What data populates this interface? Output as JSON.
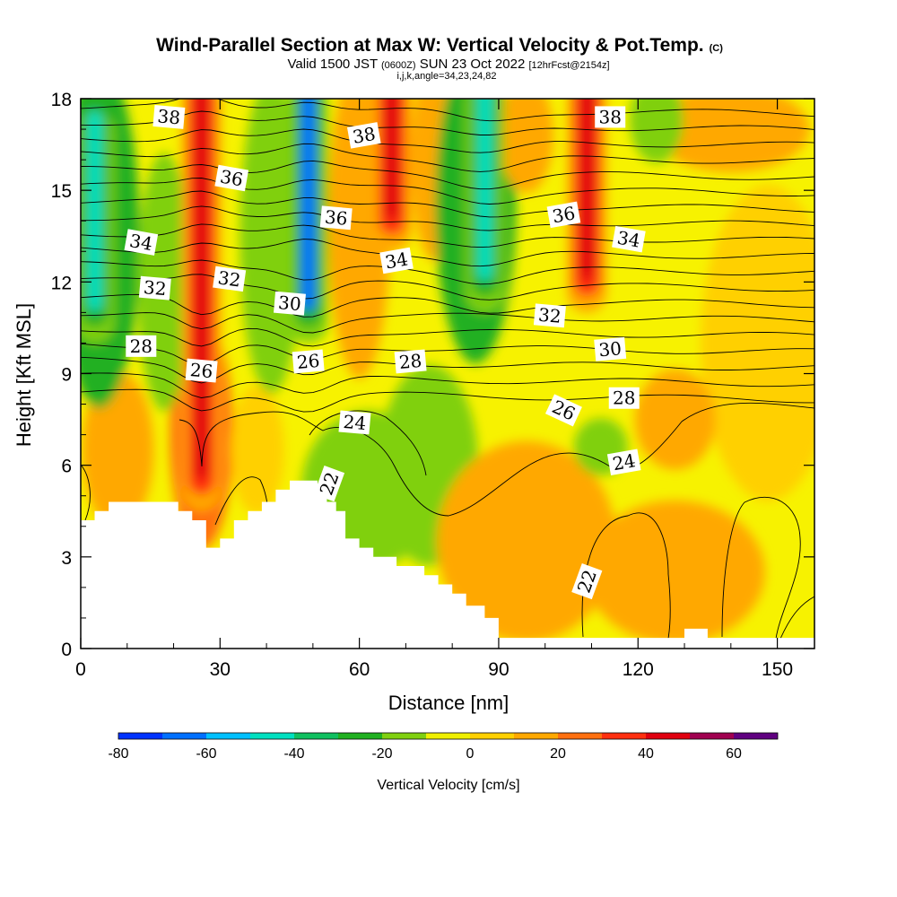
{
  "header": {
    "title": "Wind-Parallel Section at Max W: Vertical Velocity & Pot.Temp.",
    "copyright": "(C)",
    "valid_prefix": "Valid 1500 JST",
    "valid_utc": "(0600Z)",
    "valid_date": "SUN 23 Oct 2022",
    "forecast": "[12hrFcst@2154z]",
    "params": "i,j,k,angle=34,23,24,82"
  },
  "colors": {
    "terrain": "#ffffff",
    "contour": "#000000",
    "frame": "#000000"
  },
  "chart_data": {
    "type": "heatmap",
    "title": "Wind-Parallel Section at Max W: Vertical Velocity & Pot.Temp.",
    "xlabel": "Distance [nm]",
    "ylabel": "Height [Kft MSL]",
    "xlim": [
      0,
      158
    ],
    "ylim": [
      0,
      18
    ],
    "xticks": [
      0,
      30,
      60,
      90,
      120,
      150
    ],
    "yticks": [
      0,
      3,
      6,
      9,
      12,
      15,
      18
    ],
    "colorbar": {
      "label": "Vertical Velocity [cm/s]",
      "levels": [
        -80,
        -70,
        -60,
        -50,
        -40,
        -30,
        -20,
        -10,
        0,
        10,
        20,
        30,
        40,
        50,
        60,
        70
      ],
      "colors": [
        "#0033ff",
        "#0070ff",
        "#00c0ff",
        "#00e0c0",
        "#10c060",
        "#20b020",
        "#80d010",
        "#f0f000",
        "#ffd000",
        "#ffa800",
        "#ff7010",
        "#ff3010",
        "#e00010",
        "#a00050",
        "#600080"
      ],
      "ticks": [
        -80,
        -60,
        -40,
        -20,
        0,
        20,
        40,
        60
      ]
    },
    "shading": "vertical velocity (cm/s), filled contours",
    "contours": {
      "field": "potential temperature",
      "labels": [
        {
          "value": 38,
          "x": 19,
          "y": 17.4
        },
        {
          "value": 38,
          "x": 61,
          "y": 16.8
        },
        {
          "value": 38,
          "x": 114,
          "y": 17.4
        },
        {
          "value": 36,
          "x": 32.5,
          "y": 15.4
        },
        {
          "value": 36,
          "x": 55,
          "y": 14.1
        },
        {
          "value": 36,
          "x": 104,
          "y": 14.2
        },
        {
          "value": 34,
          "x": 13,
          "y": 13.3
        },
        {
          "value": 34,
          "x": 68,
          "y": 12.7
        },
        {
          "value": 34,
          "x": 118,
          "y": 13.4
        },
        {
          "value": 32,
          "x": 16,
          "y": 11.8
        },
        {
          "value": 32,
          "x": 32,
          "y": 12.1
        },
        {
          "value": 32,
          "x": 101,
          "y": 10.9
        },
        {
          "value": 30,
          "x": 45,
          "y": 11.3
        },
        {
          "value": 30,
          "x": 114,
          "y": 9.8
        },
        {
          "value": 28,
          "x": 13,
          "y": 9.9
        },
        {
          "value": 28,
          "x": 71,
          "y": 9.4
        },
        {
          "value": 28,
          "x": 117,
          "y": 8.2
        },
        {
          "value": 26,
          "x": 26,
          "y": 9.1
        },
        {
          "value": 26,
          "x": 49,
          "y": 9.4
        },
        {
          "value": 26,
          "x": 104,
          "y": 7.8
        },
        {
          "value": 24,
          "x": 59,
          "y": 7.4
        },
        {
          "value": 24,
          "x": 117,
          "y": 6.1
        },
        {
          "value": 22,
          "x": 53.5,
          "y": 5.4
        },
        {
          "value": 22,
          "x": 109,
          "y": 2.2
        }
      ]
    },
    "velocity_features": [
      {
        "x": 3,
        "y_from": 10,
        "y_to": 17,
        "w": -45
      },
      {
        "x": 26,
        "y_from": 4.5,
        "y_to": 18,
        "w": 40
      },
      {
        "x": 49,
        "y_from": 10,
        "y_to": 18,
        "w": -70
      },
      {
        "x": 67,
        "y_from": 13,
        "y_to": 18,
        "w": 45
      },
      {
        "x": 87,
        "y_from": 11,
        "y_to": 18,
        "w": -45
      },
      {
        "x": 109,
        "y_from": 11,
        "y_to": 18,
        "w": 40
      }
    ],
    "terrain_top_kft": [
      [
        0,
        4.2
      ],
      [
        3,
        4.2
      ],
      [
        3,
        4.5
      ],
      [
        6,
        4.5
      ],
      [
        6,
        4.8
      ],
      [
        21,
        4.8
      ],
      [
        21,
        4.5
      ],
      [
        24,
        4.5
      ],
      [
        24,
        4.2
      ],
      [
        27,
        4.2
      ],
      [
        27,
        3.3
      ],
      [
        30,
        3.3
      ],
      [
        30,
        3.6
      ],
      [
        33,
        3.6
      ],
      [
        33,
        4.2
      ],
      [
        36,
        4.2
      ],
      [
        36,
        4.5
      ],
      [
        39,
        4.5
      ],
      [
        39,
        4.8
      ],
      [
        42,
        4.8
      ],
      [
        42,
        5.2
      ],
      [
        45,
        5.2
      ],
      [
        45,
        5.5
      ],
      [
        51,
        5.5
      ],
      [
        51,
        5.2
      ],
      [
        53,
        5.2
      ],
      [
        53,
        4.8
      ],
      [
        55,
        4.8
      ],
      [
        55,
        4.5
      ],
      [
        57,
        4.5
      ],
      [
        57,
        3.6
      ],
      [
        60,
        3.6
      ],
      [
        60,
        3.3
      ],
      [
        63,
        3.3
      ],
      [
        63,
        3.0
      ],
      [
        68,
        3.0
      ],
      [
        68,
        2.7
      ],
      [
        74,
        2.7
      ],
      [
        74,
        2.4
      ],
      [
        77,
        2.4
      ],
      [
        77,
        2.1
      ],
      [
        80,
        2.1
      ],
      [
        80,
        1.8
      ],
      [
        83,
        1.8
      ],
      [
        83,
        1.4
      ],
      [
        87,
        1.4
      ],
      [
        87,
        1.0
      ],
      [
        90,
        1.0
      ],
      [
        90,
        0.35
      ],
      [
        130,
        0.35
      ],
      [
        130,
        0.65
      ],
      [
        135,
        0.65
      ],
      [
        135,
        0.35
      ],
      [
        158,
        0.35
      ]
    ]
  }
}
